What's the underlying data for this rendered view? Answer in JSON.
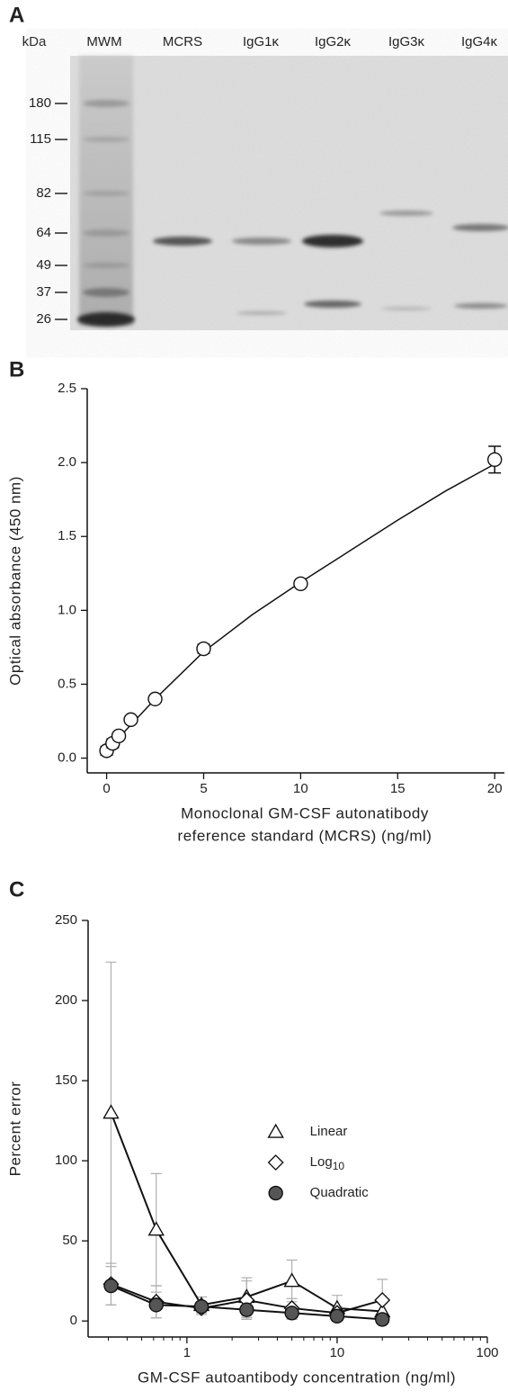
{
  "panel_a": {
    "label": "A",
    "unit": "kDa",
    "lanes": [
      "MWM",
      "MCRS",
      "IgG1κ",
      "IgG2κ",
      "IgG3κ",
      "IgG4κ"
    ],
    "markers": [
      "180",
      "115",
      "82",
      "64",
      "49",
      "37",
      "26"
    ]
  },
  "chart_data": [
    {
      "type": "scatter",
      "label": "B",
      "x_label": [
        "Monoclonal GM-CSF autonatibody",
        "reference standard (MCRS) (ng/ml)"
      ],
      "y_label": "Optical absorbance (450 nm)",
      "x": [
        0,
        0.3125,
        0.625,
        1.25,
        2.5,
        5,
        10,
        20
      ],
      "values": [
        0.05,
        0.1,
        0.15,
        0.26,
        0.4,
        0.74,
        1.18,
        2.02
      ],
      "errors": [
        0.03,
        0.03,
        0.02,
        0.02,
        0.02,
        0.03,
        0.02,
        0.09
      ],
      "fit": {
        "x": [
          0,
          1,
          2.5,
          5,
          7.5,
          10,
          12.5,
          15,
          17.5,
          20
        ],
        "values": [
          0.04,
          0.19,
          0.4,
          0.72,
          0.97,
          1.19,
          1.4,
          1.61,
          1.81,
          1.99
        ]
      },
      "color": "#ffffff",
      "xlim": [
        -1,
        20.5
      ],
      "ylim": [
        -0.1,
        2.5
      ],
      "xticks": [
        0,
        5,
        10,
        15,
        20
      ],
      "yticks": [
        {
          "value": 0,
          "label": "0.0"
        },
        0.5,
        {
          "value": 1,
          "label": "1.0"
        },
        1.5,
        {
          "value": 2,
          "label": "2.0"
        },
        2.5
      ]
    },
    {
      "type": "line",
      "label": "C",
      "log_x": true,
      "x_label": "GM-CSF autoantibody concentration (ng/ml)",
      "y_label": "Percent error",
      "x": [
        0.3125,
        0.625,
        1.25,
        2.5,
        5,
        10,
        20
      ],
      "series": [
        {
          "name": "Linear",
          "marker": "triangle",
          "color": "#ffffff",
          "values": [
            130,
            57,
            10,
            15,
            25,
            8,
            6
          ],
          "errors": [
            94,
            35,
            5,
            12,
            13,
            8,
            8
          ]
        },
        {
          "name": "Log10",
          "marker": "diamond",
          "color": "#ffffff",
          "values": [
            23,
            12,
            8,
            13,
            8,
            5,
            13
          ],
          "errors": [
            13,
            10,
            4,
            12,
            6,
            4,
            13
          ]
        },
        {
          "name": "Quadratic",
          "marker": "circle",
          "color": "#555555",
          "values": [
            22,
            10,
            9,
            7,
            5,
            3,
            1
          ],
          "errors": [
            12,
            8,
            3,
            5,
            4,
            3,
            2
          ]
        }
      ],
      "error_color": "#b0b0b0",
      "legend": "right",
      "xlim": [
        0.22,
        100
      ],
      "ylim": [
        -10,
        250
      ],
      "xticks": [
        1,
        10,
        100
      ],
      "xticks_minor": [
        0.3,
        0.4,
        0.5,
        0.6,
        0.7,
        0.8,
        0.9,
        2,
        3,
        4,
        5,
        6,
        7,
        8,
        9,
        20,
        30,
        40,
        50,
        60,
        70,
        80,
        90
      ],
      "yticks": [
        0,
        50,
        100,
        150,
        200,
        250
      ]
    }
  ]
}
